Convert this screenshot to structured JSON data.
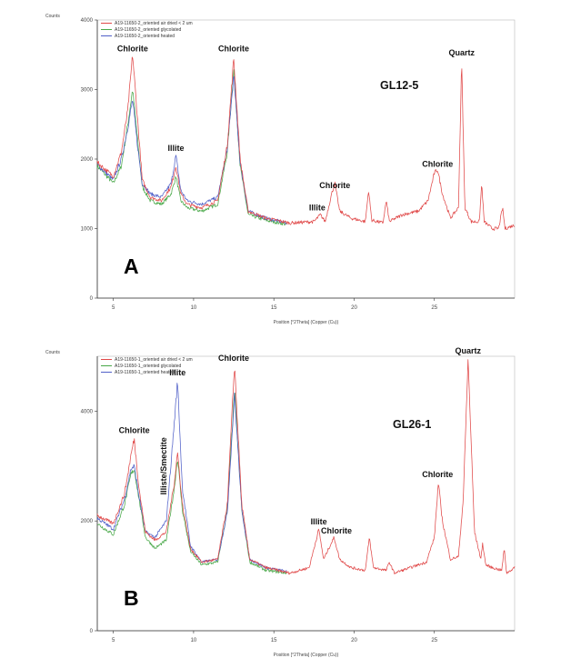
{
  "chart_data": [
    {
      "type": "line",
      "panel_label": "A",
      "sample_label": "GL12-5",
      "ylabel": "Counts",
      "xlabel": "Position [°2Theta] (Copper (Cu))",
      "xlim": [
        4,
        30
      ],
      "ylim": [
        0,
        4000
      ],
      "x_ticks": [
        "5",
        "10",
        "15",
        "20",
        "25"
      ],
      "x_tick_values": [
        5,
        10,
        15,
        20,
        25
      ],
      "y_ticks": [
        "0",
        "1000",
        "2000",
        "3000",
        "4000"
      ],
      "y_tick_values": [
        0,
        1000,
        2000,
        3000,
        4000
      ],
      "legend_position": "top-left",
      "series": [
        {
          "name": "A19-11650-2_oriented air dried < 2 um",
          "color": "#e04848",
          "x": [
            4,
            5,
            5.5,
            5.9,
            6.2,
            6.5,
            6.8,
            7.3,
            8.0,
            8.6,
            8.9,
            9.2,
            9.6,
            10.5,
            11.5,
            12.1,
            12.5,
            12.9,
            13.4,
            14.5,
            16,
            17.5,
            17.9,
            18.2,
            18.6,
            18.8,
            19.1,
            19.8,
            20.7,
            20.9,
            21.1,
            21.8,
            22.0,
            22.2,
            23,
            24,
            24.6,
            25.0,
            25.2,
            25.5,
            26.0,
            26.5,
            26.7,
            26.9,
            27.3,
            27.8,
            27.95,
            28.1,
            28.6,
            29.0,
            29.25,
            29.4,
            30
          ],
          "y": [
            1950,
            1750,
            2100,
            2700,
            3500,
            2600,
            1700,
            1450,
            1400,
            1600,
            1900,
            1500,
            1350,
            1300,
            1400,
            2200,
            3450,
            2000,
            1250,
            1150,
            1080,
            1100,
            1200,
            1100,
            1500,
            1650,
            1250,
            1150,
            1100,
            1550,
            1120,
            1080,
            1400,
            1100,
            1200,
            1250,
            1400,
            1800,
            1850,
            1500,
            1150,
            1300,
            3400,
            1300,
            1100,
            1100,
            1650,
            1100,
            1000,
            1000,
            1300,
            1000,
            1050
          ]
        },
        {
          "name": "A19-11650-2_oriented glycolated",
          "color": "#48a848",
          "x": [
            4,
            5,
            5.5,
            5.9,
            6.2,
            6.5,
            6.8,
            7.3,
            8.0,
            8.6,
            8.9,
            9.2,
            9.6,
            10.5,
            11.5,
            12.1,
            12.5,
            12.9,
            13.4,
            14.5,
            15.8
          ],
          "y": [
            1900,
            1650,
            1900,
            2500,
            3000,
            2300,
            1600,
            1400,
            1350,
            1500,
            1750,
            1400,
            1300,
            1250,
            1350,
            2100,
            3300,
            1900,
            1200,
            1120,
            1060
          ]
        },
        {
          "name": "A19-11650-2_oriented heated",
          "color": "#5060c8",
          "x": [
            4,
            5,
            5.5,
            5.9,
            6.2,
            6.5,
            6.8,
            7.3,
            8.0,
            8.6,
            8.9,
            9.2,
            9.6,
            10.5,
            11.5,
            12.1,
            12.5,
            12.9,
            13.4,
            14.5,
            15.8
          ],
          "y": [
            1920,
            1700,
            2000,
            2450,
            2850,
            2200,
            1650,
            1500,
            1450,
            1650,
            2050,
            1550,
            1400,
            1350,
            1450,
            2150,
            3200,
            1950,
            1250,
            1150,
            1080
          ]
        }
      ],
      "annotations": [
        {
          "text": "Chlorite",
          "x": 6.2,
          "y": 3550
        },
        {
          "text": "Illite",
          "x": 8.9,
          "y": 2120
        },
        {
          "text": "Chlorite",
          "x": 12.5,
          "y": 3550
        },
        {
          "text": "Illite",
          "x": 17.7,
          "y": 1260
        },
        {
          "text": "Chlorite",
          "x": 18.8,
          "y": 1580
        },
        {
          "text": "Chlorite",
          "x": 25.2,
          "y": 1890
        },
        {
          "text": "Quartz",
          "x": 26.7,
          "y": 3490
        }
      ]
    },
    {
      "type": "line",
      "panel_label": "B",
      "sample_label": "GL26-1",
      "ylabel": "Counts",
      "xlabel": "Position [°2Theta] (Copper (Cu))",
      "xlim": [
        4,
        30
      ],
      "ylim": [
        0,
        5000
      ],
      "x_ticks": [
        "5",
        "10",
        "15",
        "20",
        "25"
      ],
      "x_tick_values": [
        5,
        10,
        15,
        20,
        25
      ],
      "y_ticks": [
        "0",
        "2000",
        "4000"
      ],
      "y_tick_values": [
        0,
        2000,
        4000
      ],
      "legend_position": "top-left",
      "series": [
        {
          "name": "A19-11650-1_oriented air dried < 2 um",
          "color": "#e04848",
          "x": [
            4,
            5,
            5.7,
            6.1,
            6.3,
            6.6,
            7.0,
            7.6,
            8.3,
            8.8,
            9.0,
            9.3,
            9.8,
            10.5,
            11.5,
            12.1,
            12.55,
            13.0,
            13.5,
            14.5,
            16,
            17.2,
            17.8,
            18.1,
            18.5,
            18.75,
            19.1,
            19.8,
            20.7,
            20.95,
            21.2,
            22.0,
            22.2,
            22.5,
            23.5,
            24.5,
            25.0,
            25.25,
            25.5,
            26.0,
            26.5,
            26.8,
            27.1,
            27.5,
            27.9,
            28.0,
            28.2,
            28.6,
            29.2,
            29.35,
            29.5,
            30
          ],
          "y": [
            2100,
            1950,
            2500,
            3200,
            3500,
            2600,
            1800,
            1650,
            1800,
            2700,
            3250,
            2300,
            1500,
            1250,
            1300,
            2300,
            4850,
            2300,
            1300,
            1150,
            1050,
            1150,
            1850,
            1300,
            1550,
            1700,
            1300,
            1150,
            1100,
            1700,
            1150,
            1100,
            1250,
            1050,
            1150,
            1250,
            1700,
            2700,
            2000,
            1300,
            1350,
            2400,
            4950,
            1800,
            1300,
            1600,
            1200,
            1150,
            1100,
            1500,
            1050,
            1150
          ]
        },
        {
          "name": "A19-11650-1_oriented glycolated",
          "color": "#48a848",
          "x": [
            4,
            5,
            5.7,
            6.1,
            6.3,
            6.6,
            7.0,
            7.6,
            8.3,
            8.8,
            9.0,
            9.3,
            9.8,
            10.5,
            11.5,
            12.1,
            12.55,
            13.0,
            13.5,
            14.5,
            15.8
          ],
          "y": [
            1950,
            1750,
            2300,
            2850,
            2950,
            2400,
            1700,
            1500,
            1650,
            2600,
            3150,
            2200,
            1450,
            1200,
            1250,
            2200,
            4400,
            2200,
            1250,
            1100,
            1050
          ]
        },
        {
          "name": "A19-11650-1_oriented heated",
          "color": "#5060c8",
          "x": [
            4,
            5,
            5.7,
            6.1,
            6.3,
            6.6,
            7.0,
            7.6,
            8.3,
            8.8,
            9.0,
            9.3,
            9.8,
            10.5,
            11.5,
            12.1,
            12.55,
            13.0,
            13.5,
            14.5,
            15.8
          ],
          "y": [
            2050,
            1850,
            2400,
            2950,
            3000,
            2450,
            1800,
            1700,
            2000,
            3800,
            4550,
            2600,
            1550,
            1250,
            1300,
            2150,
            4300,
            2200,
            1300,
            1150,
            1080
          ]
        }
      ],
      "annotations": [
        {
          "text": "Chlorite",
          "x": 6.3,
          "y": 3600
        },
        {
          "text": "Illite",
          "x": 9.0,
          "y": 4650
        },
        {
          "text": "Illiste/Smectite",
          "x": 8.3,
          "y": 3000,
          "rotate": true
        },
        {
          "text": "Chlorite",
          "x": 12.5,
          "y": 4920
        },
        {
          "text": "Illite",
          "x": 17.8,
          "y": 1940
        },
        {
          "text": "Chlorite",
          "x": 18.9,
          "y": 1770
        },
        {
          "text": "Chlorite",
          "x": 25.2,
          "y": 2800
        },
        {
          "text": "Quartz",
          "x": 27.1,
          "y": 5050
        }
      ]
    }
  ]
}
